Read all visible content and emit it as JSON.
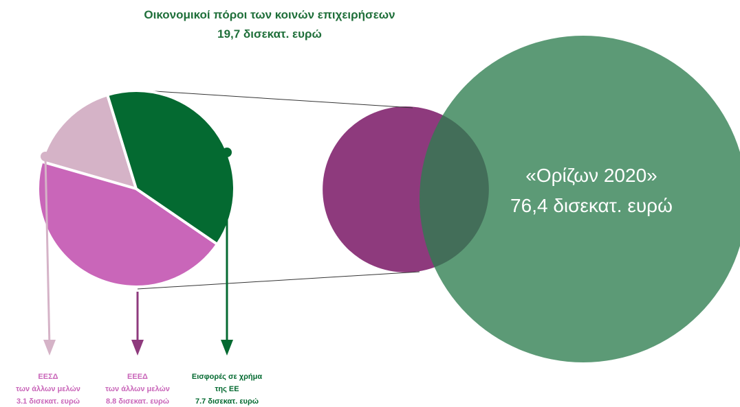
{
  "chart_data": {
    "type": "pie",
    "title": "Οικονομικοί πόροι των κοινών επιχειρήσεων",
    "total": {
      "value": 19.7,
      "label": "19,7 δισεκατ. ευρώ"
    },
    "categories": [
      "ΕΕΣΔ\nτων άλλων μελών",
      "ΕΕΕΔ\nτων άλλων μελών",
      "Εισφορές σε χρήμα\nτης ΕΕ"
    ],
    "values": [
      3.1,
      8.8,
      7.7
    ],
    "value_labels": [
      "3.1 δισεκατ. ευρώ",
      "8.8 δισεκατ. ευρώ",
      "7.7 δισεκατ. ευρώ"
    ],
    "colors": [
      "#d5b3c7",
      "#c966b9",
      "#046a31"
    ],
    "label_colors": [
      "#c966b9",
      "#c966b9",
      "#046a31"
    ],
    "horizon": {
      "name": "«Ορίζων 2020»",
      "value": 76.4,
      "label": "76,4 δισεκατ. ευρώ",
      "color": "#2e7d4f"
    },
    "total_color": "#8e3a7d"
  }
}
